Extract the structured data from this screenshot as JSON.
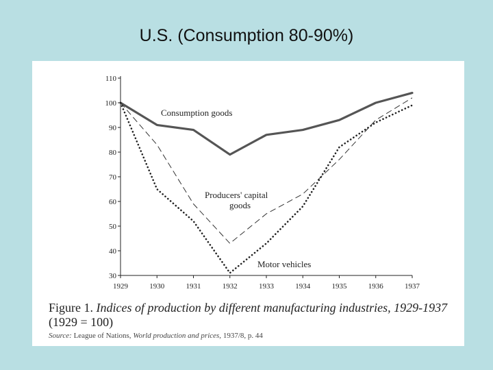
{
  "slide": {
    "title": "U.S. (Consumption 80-90%)"
  },
  "figure": {
    "label": "Figure 1.",
    "caption": "Indices of production by different manufacturing industries, 1929-1937",
    "base_note": "(1929 = 100)",
    "source_prefix": "Source:",
    "source_org": "League of Nations,",
    "source_title": "World production and prices,",
    "source_rest": "1937/8, p. 44"
  },
  "chart_data": {
    "type": "line",
    "x": [
      1929,
      1930,
      1931,
      1932,
      1933,
      1934,
      1935,
      1936,
      1937
    ],
    "ylim": [
      30,
      110
    ],
    "yticks": [
      30,
      40,
      50,
      60,
      70,
      80,
      90,
      100,
      110
    ],
    "grid": false,
    "series": [
      {
        "name": "Consumption goods",
        "style": "solid-thick",
        "color": "#555555",
        "values": [
          100,
          91,
          89,
          79,
          87,
          89,
          93,
          100,
          104
        ]
      },
      {
        "name": "Producers' capital goods",
        "style": "dashed",
        "color": "#333333",
        "values": [
          100,
          83,
          59,
          43,
          55,
          63,
          77,
          93,
          102
        ]
      },
      {
        "name": "Motor vehicles",
        "style": "dotted",
        "color": "#222222",
        "values": [
          100,
          65,
          52,
          31,
          43,
          58,
          82,
          92,
          99
        ]
      }
    ],
    "annotations": {
      "consumption": "Consumption goods",
      "producers_line1": "Producers' capital",
      "producers_line2": "goods",
      "motor": "Motor vehicles"
    }
  }
}
